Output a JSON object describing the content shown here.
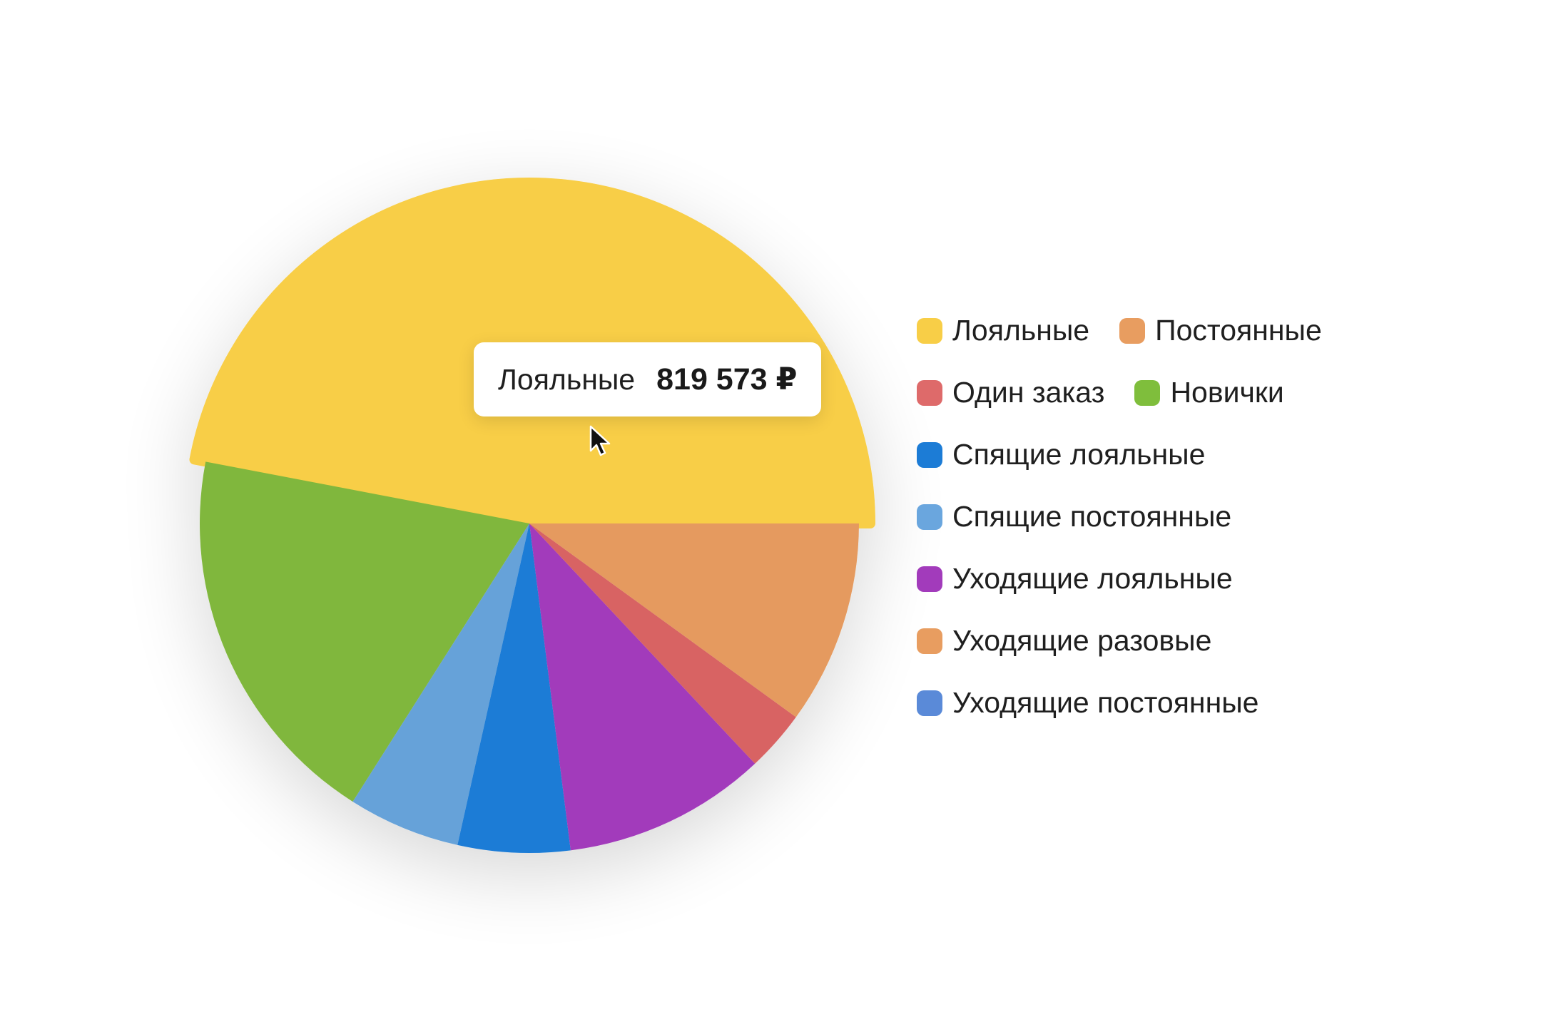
{
  "chart_data": {
    "type": "pie",
    "title": "",
    "slices": [
      {
        "name": "Лояльные",
        "value": 47,
        "color": "#F8CE47",
        "highlighted": true
      },
      {
        "name": "Новички",
        "value": 19,
        "color": "#80B73C"
      },
      {
        "name": "Спящие постоянные",
        "value": 5.5,
        "color": "#66A2D9"
      },
      {
        "name": "Спящие лояльные",
        "value": 5.5,
        "color": "#1C7CD6"
      },
      {
        "name": "Уходящие лояльные",
        "value": 10,
        "color": "#A23BBB"
      },
      {
        "name": "Один заказ",
        "value": 3,
        "color": "#D86464"
      },
      {
        "name": "Постоянные",
        "value": 10,
        "color": "#E59A5E"
      }
    ],
    "legend": [
      {
        "name": "Лояльные",
        "color": "#F8CE47"
      },
      {
        "name": "Постоянные",
        "color": "#E89D60"
      },
      {
        "name": "Один заказ",
        "color": "#DE6A6A"
      },
      {
        "name": "Новички",
        "color": "#7FBE3C"
      },
      {
        "name": "Спящие лояльные",
        "color": "#1C7CD6"
      },
      {
        "name": "Спящие постоянные",
        "color": "#6AA6DE"
      },
      {
        "name": "Уходящие лояльные",
        "color": "#A23BBB"
      },
      {
        "name": "Уходящие разовые",
        "color": "#E89D60"
      },
      {
        "name": "Уходящие постоянные",
        "color": "#5A8AD8"
      }
    ],
    "legend_position": "right",
    "tooltip": {
      "name": "Лояльные",
      "value": "819 573 ₽"
    }
  }
}
